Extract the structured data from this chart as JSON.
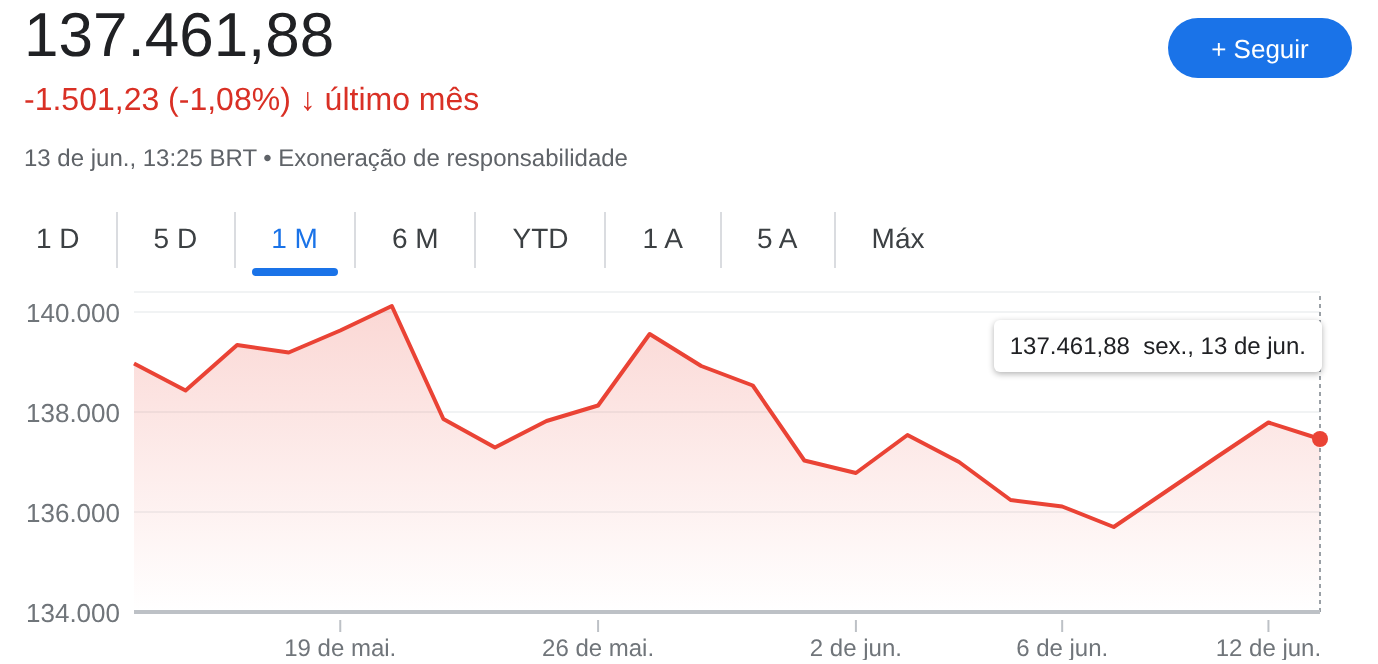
{
  "chart_data": {
    "type": "area",
    "title": "137.461,88",
    "subtitle": "-1.501,23 (-1,08%) ↓ último mês",
    "annotations": [
      "13 de jun., 13:25 BRT • Exoneração de responsabilidade",
      "1 D",
      "5 D",
      "1 M",
      "6 M",
      "YTD",
      "1 A",
      "5 A",
      "Máx",
      "+ Seguir",
      "137.461,88  sex., 13 de jun."
    ],
    "categories": [
      null,
      null,
      null,
      null,
      "19 de mai.",
      null,
      null,
      null,
      null,
      "26 de mai.",
      null,
      null,
      null,
      null,
      "2 de jun.",
      null,
      null,
      null,
      "6 de jun.",
      null,
      null,
      null,
      "12 de jun.",
      null
    ],
    "series": [
      {
        "color": "#ea4335",
        "values": [
          138970,
          138430,
          139340,
          139190,
          139630,
          140120,
          137860,
          137290,
          137820,
          138130,
          139560,
          138920,
          138530,
          137030,
          136780,
          137540,
          137000,
          136240,
          136110,
          135700,
          136400,
          137100,
          137790,
          137460
        ]
      }
    ],
    "ylim": [
      134000,
      140400
    ],
    "yticks": [
      {
        "value": 134000,
        "label": "134.000"
      },
      {
        "value": 136000,
        "label": "136.000"
      },
      {
        "value": 138000,
        "label": "138.000"
      },
      {
        "value": 140000,
        "label": "140.000"
      }
    ],
    "grid": "y",
    "marker": "none",
    "line_style": "solid"
  }
}
